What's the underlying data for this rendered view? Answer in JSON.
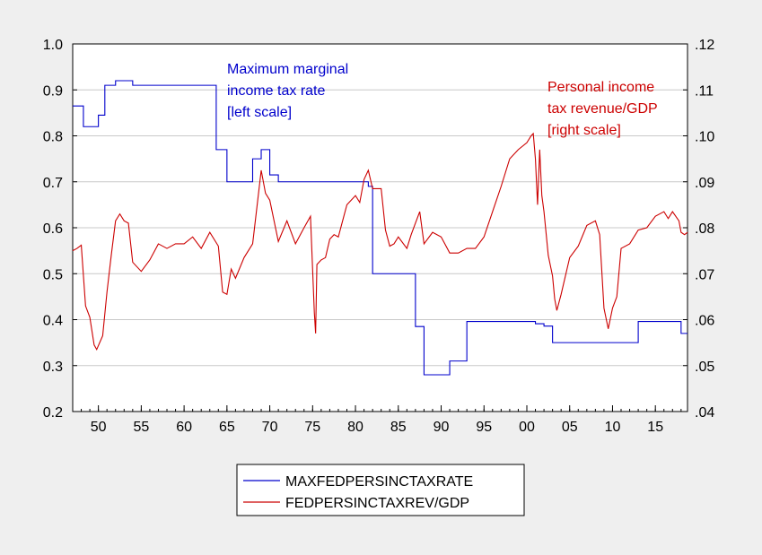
{
  "chart_data": {
    "type": "line",
    "x_tick_labels": [
      "50",
      "55",
      "60",
      "65",
      "70",
      "75",
      "80",
      "85",
      "90",
      "95",
      "00",
      "05",
      "10",
      "15"
    ],
    "x_tick_years": [
      1950,
      1955,
      1960,
      1965,
      1970,
      1975,
      1980,
      1985,
      1990,
      1995,
      2000,
      2005,
      2010,
      2015
    ],
    "x_range": [
      1947,
      2018.75
    ],
    "left_axis": {
      "ylim": [
        0.2,
        1.0
      ],
      "ticks": [
        0.2,
        0.3,
        0.4,
        0.5,
        0.6,
        0.7,
        0.8,
        0.9,
        1.0
      ],
      "tick_labels": [
        "0.2",
        "0.3",
        "0.4",
        "0.5",
        "0.6",
        "0.7",
        "0.8",
        "0.9",
        "1.0"
      ]
    },
    "right_axis": {
      "ylim": [
        0.04,
        0.12
      ],
      "ticks": [
        0.04,
        0.05,
        0.06,
        0.07,
        0.08,
        0.09,
        0.1,
        0.11,
        0.12
      ],
      "tick_labels": [
        ".04",
        ".05",
        ".06",
        ".07",
        ".08",
        ".09",
        ".10",
        ".11",
        ".12"
      ]
    },
    "grid": true,
    "legend_placement": "bottom-center",
    "annotations": {
      "left_title": [
        "Maximum marginal",
        "income tax rate",
        "[left scale]"
      ],
      "right_title": [
        "Personal income",
        "tax revenue/GDP",
        "[right scale]"
      ]
    },
    "series": [
      {
        "name": "MAXFEDPERSINCTAXRATE",
        "axis": "left",
        "color": "#0000cc",
        "step": true,
        "points": [
          [
            1947,
            0.865
          ],
          [
            1948.25,
            0.82
          ],
          [
            1950,
            0.845
          ],
          [
            1950.75,
            0.91
          ],
          [
            1952,
            0.92
          ],
          [
            1954,
            0.91
          ],
          [
            1963.75,
            0.77
          ],
          [
            1965,
            0.7
          ],
          [
            1968,
            0.75
          ],
          [
            1969,
            0.77
          ],
          [
            1970,
            0.715
          ],
          [
            1971,
            0.7
          ],
          [
            1981.5,
            0.69
          ],
          [
            1982,
            0.5
          ],
          [
            1987,
            0.385
          ],
          [
            1988,
            0.28
          ],
          [
            1991,
            0.31
          ],
          [
            1993,
            0.396
          ],
          [
            2001,
            0.391
          ],
          [
            2002,
            0.386
          ],
          [
            2003,
            0.35
          ],
          [
            2013,
            0.396
          ],
          [
            2018,
            0.37
          ],
          [
            2018.75,
            0.37
          ]
        ]
      },
      {
        "name": "FEDPERSINCTAXREV/GDP",
        "axis": "right",
        "color": "#cc0000",
        "step": false,
        "points": [
          [
            1947,
            0.075
          ],
          [
            1947.5,
            0.0755
          ],
          [
            1948,
            0.0762
          ],
          [
            1948.5,
            0.063
          ],
          [
            1949,
            0.0605
          ],
          [
            1949.5,
            0.0545
          ],
          [
            1949.8,
            0.0535
          ],
          [
            1950.5,
            0.0565
          ],
          [
            1951,
            0.066
          ],
          [
            1951.5,
            0.074
          ],
          [
            1952,
            0.0815
          ],
          [
            1952.5,
            0.083
          ],
          [
            1953,
            0.0815
          ],
          [
            1953.5,
            0.081
          ],
          [
            1954,
            0.0725
          ],
          [
            1955,
            0.0705
          ],
          [
            1956,
            0.073
          ],
          [
            1957,
            0.0765
          ],
          [
            1958,
            0.0755
          ],
          [
            1959,
            0.0765
          ],
          [
            1960,
            0.0765
          ],
          [
            1961,
            0.078
          ],
          [
            1962,
            0.0755
          ],
          [
            1963,
            0.079
          ],
          [
            1964,
            0.076
          ],
          [
            1964.5,
            0.066
          ],
          [
            1965,
            0.0655
          ],
          [
            1965.5,
            0.071
          ],
          [
            1966,
            0.069
          ],
          [
            1967,
            0.0735
          ],
          [
            1968,
            0.0765
          ],
          [
            1968.5,
            0.0845
          ],
          [
            1969,
            0.0925
          ],
          [
            1969.5,
            0.0875
          ],
          [
            1970,
            0.086
          ],
          [
            1971,
            0.077
          ],
          [
            1972,
            0.0815
          ],
          [
            1973,
            0.0765
          ],
          [
            1974,
            0.08
          ],
          [
            1974.75,
            0.0825
          ],
          [
            1975.2,
            0.0615
          ],
          [
            1975.35,
            0.057
          ],
          [
            1975.5,
            0.072
          ],
          [
            1976,
            0.073
          ],
          [
            1976.5,
            0.0735
          ],
          [
            1977,
            0.0775
          ],
          [
            1977.5,
            0.0785
          ],
          [
            1978,
            0.078
          ],
          [
            1979,
            0.085
          ],
          [
            1980,
            0.087
          ],
          [
            1980.5,
            0.0855
          ],
          [
            1981,
            0.0905
          ],
          [
            1981.5,
            0.0925
          ],
          [
            1982,
            0.0885
          ],
          [
            1983,
            0.0885
          ],
          [
            1983.5,
            0.0795
          ],
          [
            1984,
            0.076
          ],
          [
            1984.5,
            0.0765
          ],
          [
            1985,
            0.078
          ],
          [
            1986,
            0.0755
          ],
          [
            1986.5,
            0.0785
          ],
          [
            1987,
            0.081
          ],
          [
            1987.5,
            0.0835
          ],
          [
            1988,
            0.0765
          ],
          [
            1989,
            0.079
          ],
          [
            1990,
            0.078
          ],
          [
            1991,
            0.0745
          ],
          [
            1992,
            0.0745
          ],
          [
            1993,
            0.0755
          ],
          [
            1994,
            0.0755
          ],
          [
            1995,
            0.078
          ],
          [
            1996,
            0.0835
          ],
          [
            1997,
            0.089
          ],
          [
            1998,
            0.095
          ],
          [
            1999,
            0.097
          ],
          [
            2000,
            0.0985
          ],
          [
            2000.5,
            0.1
          ],
          [
            2000.75,
            0.1005
          ],
          [
            2001,
            0.095
          ],
          [
            2001.25,
            0.085
          ],
          [
            2001.5,
            0.097
          ],
          [
            2001.75,
            0.087
          ],
          [
            2002,
            0.0835
          ],
          [
            2002.5,
            0.074
          ],
          [
            2003,
            0.0695
          ],
          [
            2003.25,
            0.0645
          ],
          [
            2003.5,
            0.062
          ],
          [
            2004,
            0.0655
          ],
          [
            2005,
            0.0735
          ],
          [
            2006,
            0.076
          ],
          [
            2007,
            0.0805
          ],
          [
            2008,
            0.0815
          ],
          [
            2008.5,
            0.0785
          ],
          [
            2009,
            0.0625
          ],
          [
            2009.5,
            0.058
          ],
          [
            2010,
            0.0625
          ],
          [
            2010.5,
            0.065
          ],
          [
            2011,
            0.0755
          ],
          [
            2012,
            0.0765
          ],
          [
            2013,
            0.0795
          ],
          [
            2014,
            0.08
          ],
          [
            2015,
            0.0825
          ],
          [
            2016,
            0.0835
          ],
          [
            2016.5,
            0.082
          ],
          [
            2017,
            0.0835
          ],
          [
            2017.75,
            0.0815
          ],
          [
            2018,
            0.079
          ],
          [
            2018.4,
            0.0785
          ],
          [
            2018.75,
            0.079
          ]
        ]
      }
    ]
  }
}
